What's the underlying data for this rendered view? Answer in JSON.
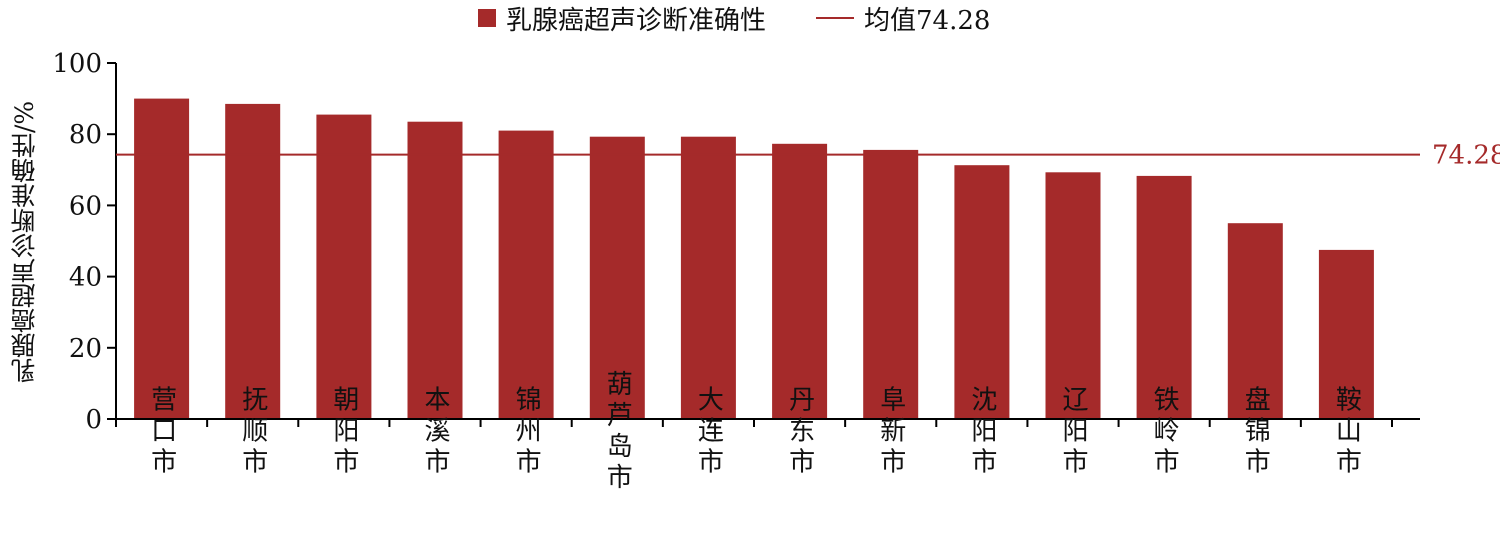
{
  "colors": {
    "bar": "#a52a2a",
    "mean_line": "#a52a2a",
    "axis": "#000000"
  },
  "legend": {
    "bar_label": "乳腺癌超声诊断准确性",
    "line_label": "均值74.28"
  },
  "chart_data": {
    "type": "bar",
    "title": "",
    "xlabel": "",
    "ylabel": "乳腺癌超声诊断准确性/%",
    "ylim": [
      0,
      100
    ],
    "yticks": [
      0,
      20,
      40,
      60,
      80,
      100
    ],
    "categories": [
      "营口市",
      "抚顺市",
      "朝阳市",
      "本溪市",
      "锦州市",
      "葫芦岛市",
      "大连市",
      "丹东市",
      "阜新市",
      "沈阳市",
      "辽阳市",
      "铁岭市",
      "盘锦市",
      "鞍山市"
    ],
    "series": [
      {
        "name": "乳腺癌超声诊断准确性",
        "values": [
          90,
          88.5,
          85.5,
          83.5,
          81,
          79.3,
          79.3,
          77.3,
          75.6,
          71.3,
          69.3,
          68.3,
          55,
          47.5
        ]
      }
    ],
    "reference_line": {
      "label": "均值74.28",
      "value": 74.28,
      "value_label": "74.28"
    },
    "legend_position": "top-center",
    "grid": false
  }
}
